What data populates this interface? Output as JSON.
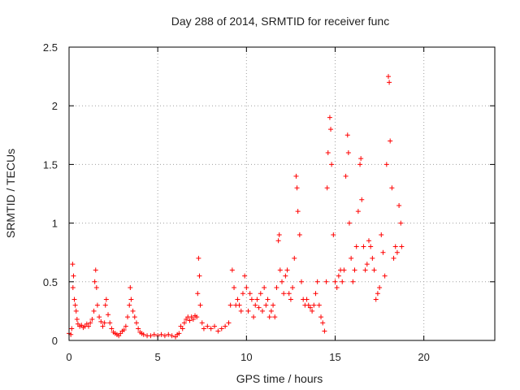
{
  "chart_data": {
    "type": "scatter",
    "title": "Day 288 of 2014, SRMTID for receiver func",
    "xlabel": "GPS time / hours",
    "ylabel": "SRMTID / TECUs",
    "xlim": [
      0,
      24
    ],
    "ylim": [
      0,
      2.5
    ],
    "xticks": [
      0,
      5,
      10,
      15,
      20
    ],
    "yticks": [
      0,
      0.5,
      1,
      1.5,
      2,
      2.5
    ],
    "xtick_labels": [
      "0",
      "5",
      "10",
      "15",
      "20"
    ],
    "ytick_labels": [
      "0",
      "0.5",
      "1",
      "1.5",
      "2",
      "2.5"
    ],
    "grid": true,
    "marker": "+",
    "color": "#ff0000",
    "series": [
      {
        "name": "SRMTID",
        "points": [
          [
            0.0,
            0.06
          ],
          [
            0.1,
            0.05
          ],
          [
            0.15,
            0.1
          ],
          [
            0.2,
            0.65
          ],
          [
            0.22,
            0.45
          ],
          [
            0.25,
            0.55
          ],
          [
            0.3,
            0.35
          ],
          [
            0.35,
            0.3
          ],
          [
            0.4,
            0.25
          ],
          [
            0.45,
            0.18
          ],
          [
            0.5,
            0.14
          ],
          [
            0.6,
            0.12
          ],
          [
            0.7,
            0.13
          ],
          [
            0.8,
            0.11
          ],
          [
            0.9,
            0.12
          ],
          [
            1.0,
            0.14
          ],
          [
            1.1,
            0.12
          ],
          [
            1.2,
            0.15
          ],
          [
            1.3,
            0.18
          ],
          [
            1.4,
            0.25
          ],
          [
            1.45,
            0.5
          ],
          [
            1.5,
            0.6
          ],
          [
            1.55,
            0.45
          ],
          [
            1.6,
            0.3
          ],
          [
            1.7,
            0.2
          ],
          [
            1.8,
            0.16
          ],
          [
            1.9,
            0.12
          ],
          [
            2.0,
            0.15
          ],
          [
            2.05,
            0.3
          ],
          [
            2.1,
            0.35
          ],
          [
            2.2,
            0.22
          ],
          [
            2.3,
            0.15
          ],
          [
            2.4,
            0.1
          ],
          [
            2.5,
            0.07
          ],
          [
            2.6,
            0.06
          ],
          [
            2.7,
            0.05
          ],
          [
            2.8,
            0.04
          ],
          [
            2.9,
            0.06
          ],
          [
            3.0,
            0.08
          ],
          [
            3.1,
            0.09
          ],
          [
            3.2,
            0.12
          ],
          [
            3.3,
            0.2
          ],
          [
            3.4,
            0.3
          ],
          [
            3.45,
            0.45
          ],
          [
            3.5,
            0.35
          ],
          [
            3.6,
            0.25
          ],
          [
            3.7,
            0.2
          ],
          [
            3.8,
            0.15
          ],
          [
            3.9,
            0.1
          ],
          [
            4.0,
            0.07
          ],
          [
            4.1,
            0.06
          ],
          [
            4.2,
            0.05
          ],
          [
            4.4,
            0.04
          ],
          [
            4.6,
            0.04
          ],
          [
            4.8,
            0.05
          ],
          [
            5.0,
            0.04
          ],
          [
            5.2,
            0.05
          ],
          [
            5.4,
            0.04
          ],
          [
            5.6,
            0.05
          ],
          [
            5.8,
            0.04
          ],
          [
            6.0,
            0.03
          ],
          [
            6.1,
            0.05
          ],
          [
            6.2,
            0.06
          ],
          [
            6.3,
            0.12
          ],
          [
            6.4,
            0.1
          ],
          [
            6.5,
            0.15
          ],
          [
            6.6,
            0.18
          ],
          [
            6.7,
            0.2
          ],
          [
            6.8,
            0.17
          ],
          [
            6.9,
            0.2
          ],
          [
            7.0,
            0.18
          ],
          [
            7.1,
            0.21
          ],
          [
            7.2,
            0.2
          ],
          [
            7.25,
            0.4
          ],
          [
            7.3,
            0.7
          ],
          [
            7.35,
            0.55
          ],
          [
            7.4,
            0.3
          ],
          [
            7.5,
            0.15
          ],
          [
            7.6,
            0.1
          ],
          [
            7.8,
            0.12
          ],
          [
            8.0,
            0.1
          ],
          [
            8.2,
            0.12
          ],
          [
            8.4,
            0.08
          ],
          [
            8.6,
            0.1
          ],
          [
            8.8,
            0.12
          ],
          [
            9.0,
            0.15
          ],
          [
            9.1,
            0.3
          ],
          [
            9.2,
            0.6
          ],
          [
            9.3,
            0.45
          ],
          [
            9.4,
            0.3
          ],
          [
            9.5,
            0.35
          ],
          [
            9.6,
            0.3
          ],
          [
            9.7,
            0.25
          ],
          [
            9.8,
            0.4
          ],
          [
            9.9,
            0.55
          ],
          [
            10.0,
            0.45
          ],
          [
            10.1,
            0.25
          ],
          [
            10.2,
            0.4
          ],
          [
            10.3,
            0.35
          ],
          [
            10.4,
            0.2
          ],
          [
            10.5,
            0.3
          ],
          [
            10.6,
            0.35
          ],
          [
            10.7,
            0.28
          ],
          [
            10.8,
            0.4
          ],
          [
            10.9,
            0.25
          ],
          [
            11.0,
            0.45
          ],
          [
            11.1,
            0.3
          ],
          [
            11.2,
            0.35
          ],
          [
            11.3,
            0.2
          ],
          [
            11.4,
            0.25
          ],
          [
            11.5,
            0.3
          ],
          [
            11.6,
            0.2
          ],
          [
            11.7,
            0.45
          ],
          [
            11.8,
            0.85
          ],
          [
            11.85,
            0.9
          ],
          [
            11.9,
            0.6
          ],
          [
            12.0,
            0.5
          ],
          [
            12.1,
            0.4
          ],
          [
            12.2,
            0.55
          ],
          [
            12.3,
            0.6
          ],
          [
            12.4,
            0.4
          ],
          [
            12.5,
            0.35
          ],
          [
            12.6,
            0.45
          ],
          [
            12.7,
            0.7
          ],
          [
            12.8,
            1.4
          ],
          [
            12.85,
            1.3
          ],
          [
            12.9,
            1.1
          ],
          [
            13.0,
            0.9
          ],
          [
            13.1,
            0.5
          ],
          [
            13.2,
            0.35
          ],
          [
            13.3,
            0.3
          ],
          [
            13.4,
            0.35
          ],
          [
            13.5,
            0.3
          ],
          [
            13.6,
            0.28
          ],
          [
            13.7,
            0.25
          ],
          [
            13.8,
            0.3
          ],
          [
            13.9,
            0.4
          ],
          [
            14.0,
            0.5
          ],
          [
            14.1,
            0.3
          ],
          [
            14.2,
            0.2
          ],
          [
            14.3,
            0.15
          ],
          [
            14.4,
            0.08
          ],
          [
            14.5,
            0.5
          ],
          [
            14.55,
            1.3
          ],
          [
            14.6,
            1.6
          ],
          [
            14.7,
            1.9
          ],
          [
            14.75,
            1.8
          ],
          [
            14.8,
            1.5
          ],
          [
            14.9,
            0.9
          ],
          [
            15.0,
            0.5
          ],
          [
            15.1,
            0.45
          ],
          [
            15.2,
            0.55
          ],
          [
            15.3,
            0.6
          ],
          [
            15.4,
            0.5
          ],
          [
            15.5,
            0.6
          ],
          [
            15.6,
            1.4
          ],
          [
            15.7,
            1.75
          ],
          [
            15.75,
            1.6
          ],
          [
            15.8,
            1.0
          ],
          [
            15.9,
            0.7
          ],
          [
            16.0,
            0.5
          ],
          [
            16.1,
            0.6
          ],
          [
            16.2,
            0.8
          ],
          [
            16.3,
            1.1
          ],
          [
            16.4,
            1.5
          ],
          [
            16.45,
            1.55
          ],
          [
            16.5,
            1.2
          ],
          [
            16.6,
            0.8
          ],
          [
            16.7,
            0.6
          ],
          [
            16.8,
            0.65
          ],
          [
            16.9,
            0.85
          ],
          [
            17.0,
            0.8
          ],
          [
            17.1,
            0.7
          ],
          [
            17.2,
            0.6
          ],
          [
            17.3,
            0.35
          ],
          [
            17.4,
            0.4
          ],
          [
            17.5,
            0.45
          ],
          [
            17.6,
            0.9
          ],
          [
            17.7,
            0.75
          ],
          [
            17.8,
            0.55
          ],
          [
            17.9,
            1.5
          ],
          [
            18.0,
            2.25
          ],
          [
            18.05,
            2.2
          ],
          [
            18.1,
            1.7
          ],
          [
            18.2,
            1.3
          ],
          [
            18.3,
            0.7
          ],
          [
            18.4,
            0.8
          ],
          [
            18.5,
            0.75
          ],
          [
            18.6,
            1.15
          ],
          [
            18.7,
            1.0
          ],
          [
            18.75,
            0.8
          ]
        ]
      }
    ]
  }
}
